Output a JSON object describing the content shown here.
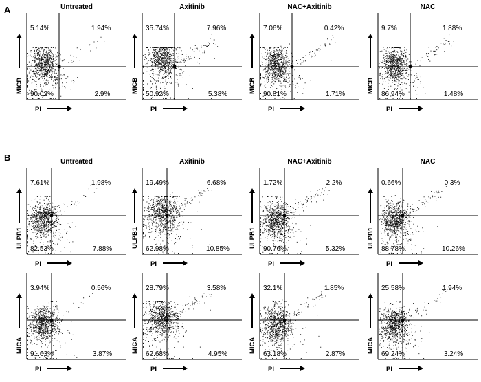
{
  "figure": {
    "sections": [
      {
        "letter": "A",
        "rows": [
          {
            "y_marker": "MICB",
            "x_marker": "PI",
            "plots": [
              {
                "title": "Untreated",
                "ul": "5.14%",
                "ur": "1.94%",
                "ll": "90.02%",
                "lr": "2.9%"
              },
              {
                "title": "Axitinib",
                "ul": "35.74%",
                "ur": "7.96%",
                "ll": "50.92%",
                "lr": "5.38%"
              },
              {
                "title": "NAC+Axitinib",
                "ul": "7.06%",
                "ur": "0.42%",
                "ll": "90.81%",
                "lr": "1.71%"
              },
              {
                "title": "NAC",
                "ul": "9.7%",
                "ur": "1.88%",
                "ll": "86.94%",
                "lr": "1.48%"
              }
            ]
          }
        ]
      },
      {
        "letter": "B",
        "rows": [
          {
            "y_marker": "ULPB1",
            "x_marker": "PI",
            "plots": [
              {
                "title": "Untreated",
                "ul": "7.61%",
                "ur": "1.98%",
                "ll": "82.53%",
                "lr": "7.88%"
              },
              {
                "title": "Axitinib",
                "ul": "19.49%",
                "ur": "6.68%",
                "ll": "62.98%",
                "lr": "10.85%"
              },
              {
                "title": "NAC+Axitinib",
                "ul": "1.72%",
                "ur": "2.2%",
                "ll": "90.76%",
                "lr": "5.32%"
              },
              {
                "title": "NAC",
                "ul": "0.66%",
                "ur": "0.3%",
                "ll": "88.78%",
                "lr": "10.26%"
              }
            ]
          },
          {
            "y_marker": "MICA",
            "x_marker": "PI",
            "plots": [
              {
                "title": "",
                "ul": "3.94%",
                "ur": "0.56%",
                "ll": "91.63%",
                "lr": "3.87%"
              },
              {
                "title": "",
                "ul": "28.79%",
                "ur": "3.58%",
                "ll": "62.68%",
                "lr": "4.95%"
              },
              {
                "title": "",
                "ul": "32.1%",
                "ur": "1.85%",
                "ll": "63.18%",
                "lr": "2.87%"
              },
              {
                "title": "",
                "ul": "25.58%",
                "ur": "1.94%",
                "ll": "69.24%",
                "lr": "3.24%"
              }
            ]
          }
        ]
      }
    ]
  },
  "chart_data": {
    "type": "scatter",
    "description": "Flow cytometry quadrant dot plots: ligand surface marker (y) vs PI (x)",
    "conditions": [
      "Untreated",
      "Axitinib",
      "NAC+Axitinib",
      "NAC"
    ],
    "quadrant_order": [
      "upper-left",
      "upper-right",
      "lower-left",
      "lower-right"
    ],
    "panels": [
      {
        "section": "A",
        "y_marker": "MICB",
        "x_marker": "PI",
        "quadrant_percentages": {
          "Untreated": [
            5.14,
            1.94,
            90.02,
            2.9
          ],
          "Axitinib": [
            35.74,
            7.96,
            50.92,
            5.38
          ],
          "NAC+Axitinib": [
            7.06,
            0.42,
            90.81,
            1.71
          ],
          "NAC": [
            9.7,
            1.88,
            86.94,
            1.48
          ]
        }
      },
      {
        "section": "B",
        "y_marker": "ULPB1",
        "x_marker": "PI",
        "quadrant_percentages": {
          "Untreated": [
            7.61,
            1.98,
            82.53,
            7.88
          ],
          "Axitinib": [
            19.49,
            6.68,
            62.98,
            10.85
          ],
          "NAC+Axitinib": [
            1.72,
            2.2,
            90.76,
            5.32
          ],
          "NAC": [
            0.66,
            0.3,
            88.78,
            10.26
          ]
        }
      },
      {
        "section": "B",
        "y_marker": "MICA",
        "x_marker": "PI",
        "quadrant_percentages": {
          "Untreated": [
            3.94,
            0.56,
            91.63,
            3.87
          ],
          "Axitinib": [
            28.79,
            3.58,
            62.68,
            4.95
          ],
          "NAC+Axitinib": [
            32.1,
            1.85,
            63.18,
            2.87
          ],
          "NAC": [
            25.58,
            1.94,
            69.24,
            3.24
          ]
        }
      }
    ]
  }
}
